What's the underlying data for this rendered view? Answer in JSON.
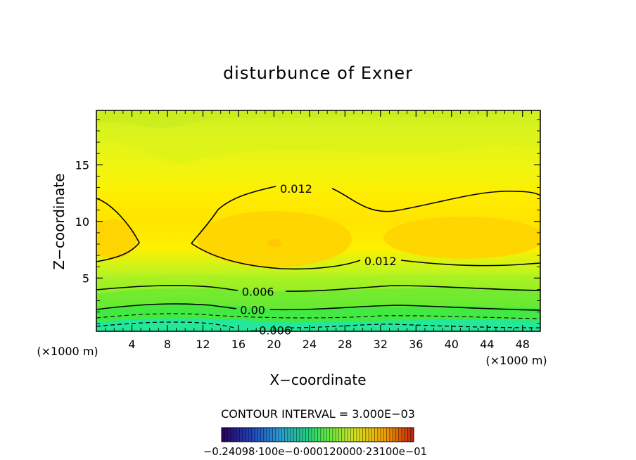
{
  "chart_data": {
    "type": "contour",
    "title": "disturbunce of Exner",
    "xlabel": "X−coordinate",
    "ylabel": "Z−coordinate",
    "x_unit": "(×1000 m)",
    "x_unit_right": "(×1000 m)",
    "xlim": [
      0,
      50
    ],
    "ylim": [
      0.3,
      19.8
    ],
    "x_ticks": [
      4,
      8,
      12,
      16,
      20,
      24,
      28,
      32,
      36,
      40,
      44,
      48
    ],
    "y_ticks": [
      5,
      10,
      15
    ],
    "contour_interval_text": "CONTOUR INTERVAL = 3.000E−03",
    "contour_labels": [
      {
        "text": "0.012",
        "x": 22.5,
        "z": 12.9
      },
      {
        "text": "0.012",
        "x": 32.0,
        "z": 6.5
      },
      {
        "text": "0.006",
        "x": 18.2,
        "z": 3.8
      },
      {
        "text": "0.00",
        "x": 17.6,
        "z": 2.2
      },
      {
        "text": "−0.006",
        "x": 19.6,
        "z": 0.4
      }
    ],
    "colorbar_labels_text": "−0.24098·100e−0·000120000·23100e−01",
    "colors": {
      "low": "#2a005a",
      "mid_low": "#2a9ad0",
      "mid": "#22e05a",
      "high": "#f0a000",
      "peak": "#c02010",
      "field_top": "#d9f020",
      "field_center": "#ffd800",
      "field_bottom": "#20e8b0"
    }
  }
}
